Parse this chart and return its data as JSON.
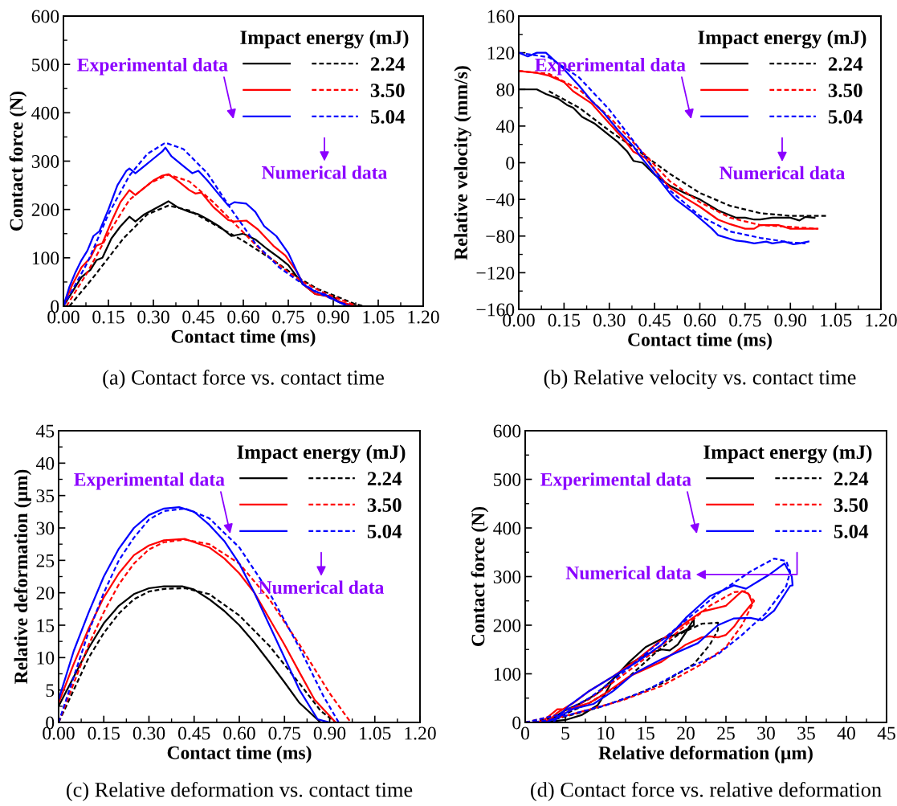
{
  "chart_data": [
    {
      "type": "line",
      "xlabel": "Contact time (ms)",
      "ylabel": "Contact force (N)",
      "legend_title": "Impact energy (mJ)",
      "legend": "top right",
      "xlim": [
        0,
        1.2
      ],
      "xticks": [
        {
          "value": 0,
          "label": "0.00"
        },
        {
          "value": 0.15,
          "label": "0.15"
        },
        {
          "value": 0.3,
          "label": "0.30"
        },
        {
          "value": 0.45,
          "label": "0.45"
        },
        {
          "value": 0.6,
          "label": "0.60"
        },
        {
          "value": 0.75,
          "label": "0.75"
        },
        {
          "value": 0.9,
          "label": "0.90"
        },
        {
          "value": 1.05,
          "label": "1.05"
        },
        {
          "value": 1.2,
          "label": "1.20"
        }
      ],
      "ylim": [
        0,
        600
      ],
      "yticks": [
        0,
        100,
        200,
        300,
        400,
        500,
        600
      ],
      "grid": false,
      "marker": "none",
      "annotations": [
        "Experimental data",
        "Numerical data",
        "(a) Contact force vs. contact time"
      ],
      "series": [
        {
          "color": "#000000",
          "line_style": "solid",
          "x": [
            0,
            0.03,
            0.06,
            0.09,
            0.11,
            0.13,
            0.16,
            0.19,
            0.22,
            0.24,
            0.27,
            0.3,
            0.33,
            0.35,
            0.38,
            0.42,
            0.45,
            0.48,
            0.52,
            0.56,
            0.6,
            0.64,
            0.68,
            0.72,
            0.75,
            0.78,
            0.8,
            0.84,
            0.87,
            0.9,
            0.92,
            0.96,
            0.98
          ],
          "values": [
            0,
            30,
            60,
            75,
            95,
            100,
            140,
            165,
            185,
            175,
            190,
            200,
            210,
            217,
            205,
            195,
            190,
            180,
            165,
            145,
            150,
            138,
            118,
            100,
            85,
            60,
            45,
            25,
            22,
            20,
            8,
            2,
            0
          ]
        },
        {
          "name": "2.24",
          "color": "#000000",
          "line_style": "dashed",
          "x": [
            0.02,
            0.1,
            0.2,
            0.28,
            0.35,
            0.42,
            0.5,
            0.6,
            0.7,
            0.78,
            0.85,
            0.92,
            0.97,
            1.0
          ],
          "values": [
            0,
            60,
            140,
            190,
            208,
            198,
            170,
            135,
            95,
            60,
            35,
            18,
            5,
            0
          ]
        },
        {
          "color": "#ff0000",
          "line_style": "solid",
          "x": [
            0,
            0.03,
            0.06,
            0.09,
            0.11,
            0.13,
            0.16,
            0.19,
            0.22,
            0.24,
            0.27,
            0.3,
            0.33,
            0.35,
            0.38,
            0.42,
            0.44,
            0.46,
            0.5,
            0.55,
            0.57,
            0.61,
            0.65,
            0.7,
            0.74,
            0.78,
            0.8,
            0.84,
            0.87,
            0.9,
            0.93,
            0.97
          ],
          "values": [
            0,
            45,
            80,
            100,
            125,
            130,
            175,
            215,
            240,
            230,
            245,
            260,
            270,
            273,
            260,
            240,
            233,
            235,
            205,
            178,
            175,
            177,
            158,
            125,
            105,
            70,
            45,
            25,
            22,
            15,
            8,
            0
          ]
        },
        {
          "name": "3.50",
          "color": "#ff0000",
          "line_style": "dashed",
          "x": [
            0.01,
            0.08,
            0.15,
            0.22,
            0.29,
            0.35,
            0.42,
            0.5,
            0.58,
            0.66,
            0.74,
            0.8,
            0.86,
            0.92,
            0.98
          ],
          "values": [
            0,
            70,
            150,
            220,
            255,
            272,
            258,
            215,
            165,
            115,
            75,
            50,
            30,
            15,
            0
          ]
        },
        {
          "color": "#0000ff",
          "line_style": "solid",
          "x": [
            0,
            0.02,
            0.04,
            0.06,
            0.08,
            0.1,
            0.12,
            0.15,
            0.18,
            0.21,
            0.22,
            0.24,
            0.27,
            0.3,
            0.33,
            0.34,
            0.36,
            0.4,
            0.43,
            0.45,
            0.48,
            0.52,
            0.55,
            0.57,
            0.61,
            0.64,
            0.67,
            0.71,
            0.75,
            0.78,
            0.8,
            0.84,
            0.87,
            0.9,
            0.93,
            0.95
          ],
          "values": [
            0,
            40,
            70,
            95,
            115,
            145,
            155,
            200,
            250,
            280,
            285,
            275,
            290,
            305,
            320,
            328,
            310,
            290,
            275,
            280,
            260,
            230,
            208,
            215,
            212,
            195,
            165,
            145,
            110,
            70,
            45,
            30,
            25,
            15,
            5,
            0
          ]
        },
        {
          "name": "5.04",
          "color": "#0000ff",
          "line_style": "dashed",
          "x": [
            0,
            0.08,
            0.15,
            0.22,
            0.28,
            0.34,
            0.4,
            0.48,
            0.56,
            0.64,
            0.72,
            0.8,
            0.86,
            0.92,
            0.96
          ],
          "values": [
            0,
            90,
            190,
            270,
            315,
            338,
            325,
            275,
            200,
            130,
            80,
            45,
            25,
            8,
            0
          ]
        }
      ]
    },
    {
      "type": "line",
      "xlabel": "Contact time (ms)",
      "ylabel": "Relative velocity (mm/s)",
      "legend_title": "Impact energy (mJ)",
      "legend": "top right",
      "xlim": [
        0,
        1.2
      ],
      "xticks": [
        {
          "value": 0,
          "label": "0.00"
        },
        {
          "value": 0.15,
          "label": "0.15"
        },
        {
          "value": 0.3,
          "label": "0.30"
        },
        {
          "value": 0.45,
          "label": "0.45"
        },
        {
          "value": 0.6,
          "label": "0.60"
        },
        {
          "value": 0.75,
          "label": "0.75"
        },
        {
          "value": 0.9,
          "label": "0.90"
        },
        {
          "value": 1.05,
          "label": "1.05"
        },
        {
          "value": 1.2,
          "label": "1.20"
        }
      ],
      "ylim": [
        -160,
        160
      ],
      "yticks": [
        {
          "value": -160,
          "label": "−160"
        },
        {
          "value": -120,
          "label": "−120"
        },
        {
          "value": -80,
          "label": "−80"
        },
        {
          "value": -40,
          "label": "−40"
        },
        0,
        40,
        80,
        120,
        160
      ],
      "grid": false,
      "marker": "none",
      "annotations": [
        "Experimental data",
        "Numerical data",
        "(b) Relative velocity vs. contact time"
      ],
      "series": [
        {
          "color": "#000000",
          "line_style": "solid",
          "x": [
            0,
            0.06,
            0.09,
            0.13,
            0.16,
            0.18,
            0.21,
            0.25,
            0.3,
            0.33,
            0.36,
            0.38,
            0.41,
            0.45,
            0.5,
            0.55,
            0.6,
            0.66,
            0.72,
            0.75,
            0.78,
            0.8,
            0.84,
            0.9,
            0.93,
            0.95,
            0.98
          ],
          "values": [
            80,
            80,
            75,
            70,
            63,
            60,
            50,
            43,
            30,
            22,
            12,
            2,
            0,
            -13,
            -25,
            -33,
            -40,
            -52,
            -60,
            -60,
            -62,
            -62,
            -60,
            -60,
            -63,
            -59,
            -60
          ]
        },
        {
          "name": "2.24",
          "color": "#000000",
          "line_style": "dashed",
          "x": [
            0.1,
            0.2,
            0.3,
            0.4,
            0.5,
            0.6,
            0.7,
            0.8,
            0.9,
            1.02
          ],
          "values": [
            78,
            60,
            35,
            12,
            -12,
            -33,
            -47,
            -55,
            -58,
            -58
          ]
        },
        {
          "color": "#ff0000",
          "line_style": "solid",
          "x": [
            0,
            0.06,
            0.1,
            0.15,
            0.18,
            0.24,
            0.3,
            0.35,
            0.38,
            0.42,
            0.46,
            0.5,
            0.55,
            0.6,
            0.66,
            0.7,
            0.75,
            0.78,
            0.8,
            0.86,
            0.9,
            0.99
          ],
          "values": [
            100,
            98,
            95,
            88,
            78,
            65,
            43,
            25,
            12,
            5,
            -12,
            -27,
            -38,
            -48,
            -62,
            -67,
            -72,
            -72,
            -68,
            -68,
            -72,
            -72
          ]
        },
        {
          "name": "3.50",
          "color": "#ff0000",
          "line_style": "dashed",
          "x": [
            0,
            0.1,
            0.2,
            0.3,
            0.4,
            0.5,
            0.6,
            0.7,
            0.8,
            0.9,
            0.99
          ],
          "values": [
            100,
            97,
            80,
            50,
            15,
            -20,
            -43,
            -60,
            -68,
            -70,
            -72
          ]
        },
        {
          "color": "#0000ff",
          "line_style": "solid",
          "x": [
            0,
            0.03,
            0.06,
            0.09,
            0.15,
            0.2,
            0.24,
            0.28,
            0.33,
            0.38,
            0.4,
            0.45,
            0.5,
            0.52,
            0.58,
            0.64,
            0.66,
            0.72,
            0.75,
            0.78,
            0.82,
            0.84,
            0.88,
            0.91,
            0.93,
            0.96
          ],
          "values": [
            120,
            116,
            120,
            120,
            102,
            84,
            68,
            55,
            35,
            18,
            8,
            -12,
            -33,
            -40,
            -55,
            -72,
            -79,
            -85,
            -86,
            -88,
            -86,
            -88,
            -86,
            -89,
            -88,
            -86
          ]
        },
        {
          "name": "5.04",
          "color": "#0000ff",
          "line_style": "dashed",
          "x": [
            0,
            0.1,
            0.2,
            0.3,
            0.4,
            0.5,
            0.6,
            0.7,
            0.8,
            0.9,
            0.95
          ],
          "values": [
            120,
            115,
            93,
            58,
            15,
            -30,
            -58,
            -75,
            -82,
            -87,
            -88
          ]
        }
      ]
    },
    {
      "type": "line",
      "xlabel": "Contact time (ms)",
      "ylabel": "Relative deformation (μm)",
      "legend_title": "Impact energy (mJ)",
      "legend": "top right",
      "xlim": [
        0,
        1.2
      ],
      "xticks": [
        {
          "value": 0,
          "label": "0.00"
        },
        {
          "value": 0.15,
          "label": "0.15"
        },
        {
          "value": 0.3,
          "label": "0.30"
        },
        {
          "value": 0.45,
          "label": "0.45"
        },
        {
          "value": 0.6,
          "label": "0.60"
        },
        {
          "value": 0.75,
          "label": "0.75"
        },
        {
          "value": 0.9,
          "label": "0.90"
        },
        {
          "value": 1.05,
          "label": "1.05"
        },
        {
          "value": 1.2,
          "label": "1.20"
        }
      ],
      "ylim": [
        0,
        45
      ],
      "yticks": [
        0,
        5,
        10,
        15,
        20,
        25,
        30,
        35,
        40,
        45
      ],
      "grid": false,
      "marker": "none",
      "annotations": [
        "Experimental data",
        "Numerical data",
        "(c) Relative deformation vs. contact time"
      ],
      "series": [
        {
          "color": "#000000",
          "line_style": "solid",
          "x": [
            0,
            0.05,
            0.1,
            0.15,
            0.2,
            0.25,
            0.3,
            0.35,
            0.41,
            0.45,
            0.5,
            0.55,
            0.6,
            0.65,
            0.7,
            0.75,
            0.8,
            0.87
          ],
          "values": [
            2.5,
            7,
            11.5,
            15.3,
            18,
            19.8,
            20.7,
            21,
            21,
            20.5,
            19,
            17.2,
            15,
            12.3,
            9.3,
            6.2,
            3,
            0
          ]
        },
        {
          "name": "2.24",
          "color": "#000000",
          "line_style": "dashed",
          "x": [
            0,
            0.05,
            0.1,
            0.15,
            0.2,
            0.25,
            0.3,
            0.35,
            0.42,
            0.5,
            0.6,
            0.7,
            0.8,
            0.87,
            0.92
          ],
          "values": [
            0,
            5,
            10,
            13.8,
            16.8,
            19,
            20.2,
            20.6,
            20.7,
            19.8,
            16.5,
            11.8,
            6,
            1.8,
            0
          ]
        },
        {
          "color": "#ff0000",
          "line_style": "solid",
          "x": [
            0,
            0.05,
            0.1,
            0.15,
            0.2,
            0.25,
            0.3,
            0.35,
            0.42,
            0.5,
            0.55,
            0.6,
            0.65,
            0.7,
            0.75,
            0.8,
            0.85,
            0.92
          ],
          "values": [
            3,
            9,
            14.5,
            19.3,
            23,
            25.8,
            27.3,
            28.1,
            28.3,
            27,
            25.3,
            23,
            20,
            16,
            12,
            7.7,
            3.5,
            0
          ]
        },
        {
          "name": "3.50",
          "color": "#ff0000",
          "line_style": "dashed",
          "x": [
            0,
            0.05,
            0.1,
            0.15,
            0.2,
            0.25,
            0.3,
            0.35,
            0.42,
            0.5,
            0.6,
            0.7,
            0.8,
            0.9,
            0.97
          ],
          "values": [
            0,
            6,
            12,
            17,
            21.3,
            24.5,
            26.7,
            27.8,
            28.2,
            27.5,
            24.5,
            19,
            12,
            4.5,
            0
          ]
        },
        {
          "color": "#0000ff",
          "line_style": "solid",
          "x": [
            0,
            0.05,
            0.1,
            0.15,
            0.2,
            0.25,
            0.3,
            0.35,
            0.4,
            0.45,
            0.5,
            0.55,
            0.6,
            0.65,
            0.7,
            0.75,
            0.8,
            0.86,
            0.9
          ],
          "values": [
            3.5,
            11,
            17,
            22.5,
            26.8,
            30,
            32,
            33,
            33.2,
            32.5,
            30.5,
            28,
            24.5,
            20,
            15,
            10,
            5,
            0.5,
            0
          ]
        },
        {
          "name": "5.04",
          "color": "#0000ff",
          "line_style": "dashed",
          "x": [
            0,
            0.05,
            0.1,
            0.15,
            0.2,
            0.25,
            0.3,
            0.35,
            0.42,
            0.5,
            0.6,
            0.7,
            0.8,
            0.88,
            0.93
          ],
          "values": [
            0,
            7,
            14,
            20,
            25,
            28.5,
            31.3,
            32.6,
            33,
            31.5,
            27,
            20,
            11.5,
            4,
            0
          ]
        }
      ]
    },
    {
      "type": "line",
      "xlabel": "Relative deformation (μm)",
      "ylabel": "Contact force (N)",
      "legend_title": "Impact energy (mJ)",
      "legend": "top right",
      "xlim": [
        0,
        45
      ],
      "xticks": [
        0,
        5,
        10,
        15,
        20,
        25,
        30,
        35,
        40,
        45
      ],
      "ylim": [
        0,
        600
      ],
      "yticks": [
        0,
        100,
        200,
        300,
        400,
        500,
        600
      ],
      "grid": false,
      "marker": "none",
      "annotations": [
        "Experimental data",
        "Numerical data",
        "(d) Contact force vs. relative deformation"
      ],
      "series": [
        {
          "color": "#000000",
          "line_style": "solid",
          "x": [
            2,
            3,
            5,
            7,
            9,
            10,
            11,
            13,
            15,
            17,
            19,
            20,
            21,
            21,
            20,
            19,
            18,
            17,
            15,
            13,
            11,
            9,
            7,
            5,
            4,
            3,
            2.5
          ],
          "values": [
            0,
            2,
            5,
            15,
            35,
            60,
            90,
            125,
            155,
            172,
            182,
            190,
            200,
            213,
            185,
            160,
            148,
            150,
            140,
            120,
            90,
            60,
            40,
            25,
            15,
            5,
            0
          ]
        },
        {
          "name": "2.24",
          "color": "#000000",
          "line_style": "dashed",
          "x": [
            0,
            4,
            8,
            12,
            16,
            19,
            22,
            24,
            24,
            23,
            21,
            17,
            13,
            9,
            5,
            2
          ],
          "values": [
            0,
            10,
            40,
            80,
            140,
            180,
            203,
            205,
            190,
            160,
            120,
            80,
            52,
            30,
            12,
            0
          ]
        },
        {
          "color": "#ff0000",
          "line_style": "solid",
          "x": [
            2,
            4,
            5.5,
            8,
            10,
            13,
            17,
            20,
            22,
            23,
            24,
            25,
            26,
            27,
            28,
            28.3,
            27.8,
            27,
            25,
            22,
            20,
            17,
            14,
            11,
            8,
            6,
            4,
            3,
            2.5
          ],
          "values": [
            0,
            27,
            28,
            40,
            60,
            95,
            125,
            160,
            175,
            177,
            175,
            180,
            197,
            220,
            240,
            245,
            265,
            270,
            240,
            228,
            205,
            170,
            130,
            95,
            65,
            40,
            20,
            5,
            0
          ]
        },
        {
          "name": "3.50",
          "color": "#ff0000",
          "line_style": "dashed",
          "x": [
            0,
            4,
            8,
            12,
            16,
            20,
            23,
            26,
            27.5,
            28.5,
            27,
            25,
            22,
            17,
            12,
            7,
            3,
            1
          ],
          "values": [
            0,
            15,
            48,
            95,
            145,
            200,
            240,
            268,
            270,
            250,
            200,
            155,
            120,
            75,
            45,
            22,
            5,
            0
          ]
        },
        {
          "color": "#0000ff",
          "line_style": "solid",
          "x": [
            2.5,
            4,
            6,
            8.5,
            11,
            13.5,
            17,
            21.5,
            24,
            26,
            28,
            29.5,
            31,
            33,
            33.3,
            33.2,
            32.3,
            30.5,
            29,
            27.5,
            26,
            23,
            20,
            17,
            14,
            11,
            8,
            5.5,
            4,
            3.5
          ],
          "values": [
            0,
            10,
            28,
            38,
            65,
            100,
            130,
            163,
            200,
            214,
            215,
            210,
            230,
            281,
            282,
            300,
            327,
            305,
            290,
            275,
            282,
            260,
            215,
            160,
            125,
            95,
            65,
            35,
            10,
            0
          ]
        },
        {
          "name": "5.04",
          "color": "#0000ff",
          "line_style": "dashed",
          "x": [
            0,
            4,
            8,
            12,
            16,
            20,
            24,
            28,
            31,
            32.5,
            33,
            32.5,
            30,
            27,
            24,
            20,
            15,
            10,
            6,
            3,
            1
          ],
          "values": [
            0,
            15,
            50,
            100,
            155,
            210,
            265,
            310,
            337,
            332,
            310,
            280,
            225,
            180,
            140,
            110,
            65,
            35,
            18,
            5,
            0
          ]
        }
      ]
    }
  ]
}
